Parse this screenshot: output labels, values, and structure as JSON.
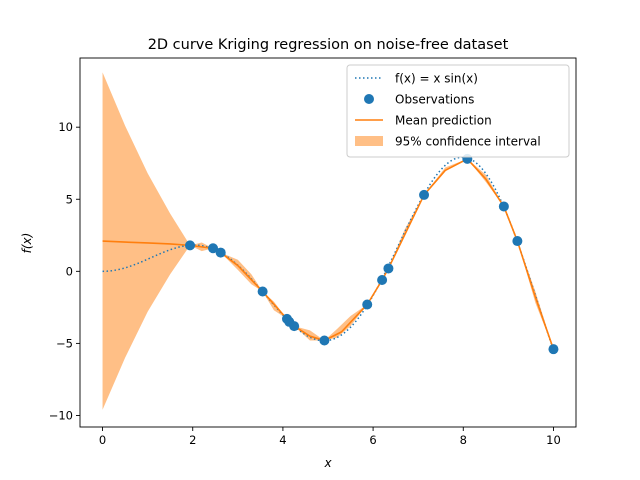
{
  "chart_data": {
    "type": "line",
    "title": "2D curve Kriging regression on noise-free dataset",
    "xlabel": "x",
    "ylabel": "f(x)",
    "xlim": [
      -0.5,
      10.5
    ],
    "ylim": [
      -10.8,
      14.8
    ],
    "xticks": [
      0,
      2,
      4,
      6,
      8,
      10
    ],
    "yticks": [
      -10,
      -5,
      0,
      5,
      10
    ],
    "grid": false,
    "legend_position": "top-right",
    "colors": {
      "true_function": "#1f77b4",
      "observations": "#1f77b4",
      "mean": "#ff7f0e",
      "interval": "#ffbf86"
    },
    "legend": [
      {
        "key": "true_function",
        "label": "f(x) = x sin(x)",
        "style": "dotted-line"
      },
      {
        "key": "observations",
        "label": "Observations",
        "style": "marker"
      },
      {
        "key": "mean",
        "label": "Mean prediction",
        "style": "line"
      },
      {
        "key": "interval",
        "label": "95% confidence interval",
        "style": "patch"
      }
    ],
    "observations": {
      "x": [
        1.94,
        2.45,
        2.62,
        3.55,
        4.09,
        4.14,
        4.25,
        4.92,
        5.87,
        6.2,
        6.34,
        7.13,
        8.09,
        8.9,
        9.2,
        10.0
      ],
      "y": [
        1.8,
        1.6,
        1.3,
        -1.4,
        -3.3,
        -3.5,
        -3.8,
        -4.8,
        -2.3,
        -0.6,
        0.2,
        5.3,
        7.8,
        4.5,
        2.1,
        -5.4
      ]
    },
    "mean_prediction": {
      "x": [
        0,
        0.5,
        1.0,
        1.5,
        1.94,
        2.45,
        2.62,
        3.0,
        3.55,
        4.09,
        4.25,
        4.6,
        4.92,
        5.3,
        5.87,
        6.2,
        6.34,
        7.13,
        7.6,
        8.09,
        8.5,
        8.9,
        9.2,
        9.6,
        10.0
      ],
      "y": [
        2.1,
        2.03,
        1.97,
        1.9,
        1.8,
        1.6,
        1.3,
        0.4,
        -1.4,
        -3.3,
        -3.8,
        -4.5,
        -4.8,
        -4.2,
        -2.3,
        -0.6,
        0.2,
        5.3,
        7.0,
        7.8,
        6.4,
        4.5,
        2.1,
        -1.8,
        -5.4
      ]
    },
    "confidence_interval": {
      "x": [
        0,
        0.5,
        1.0,
        1.5,
        1.94,
        2.2,
        2.45,
        2.62,
        3.0,
        3.3,
        3.55,
        3.8,
        4.09,
        4.25,
        4.6,
        4.92,
        5.2,
        5.5,
        5.87,
        6.2,
        6.34,
        6.7,
        7.13,
        7.6,
        8.09,
        8.5,
        8.9,
        9.2,
        9.6,
        10.0
      ],
      "lower": [
        -9.6,
        -6.0,
        -2.8,
        -0.2,
        1.8,
        1.4,
        1.6,
        1.3,
        0.1,
        -0.9,
        -1.4,
        -2.7,
        -3.3,
        -3.8,
        -4.8,
        -4.8,
        -4.6,
        -3.8,
        -2.3,
        -0.6,
        0.2,
        2.6,
        5.3,
        7.0,
        7.8,
        6.2,
        4.5,
        2.1,
        -2.2,
        -5.4
      ],
      "upper": [
        13.8,
        10.1,
        6.8,
        4.0,
        1.8,
        2.0,
        1.6,
        1.3,
        0.8,
        -0.2,
        -1.4,
        -2.1,
        -3.3,
        -3.8,
        -4.1,
        -4.8,
        -4.0,
        -3.1,
        -2.3,
        -0.6,
        0.2,
        2.9,
        5.3,
        7.2,
        7.8,
        6.7,
        4.5,
        2.1,
        -1.4,
        -5.4
      ]
    },
    "true_function_expression": "x*sin(x)"
  }
}
